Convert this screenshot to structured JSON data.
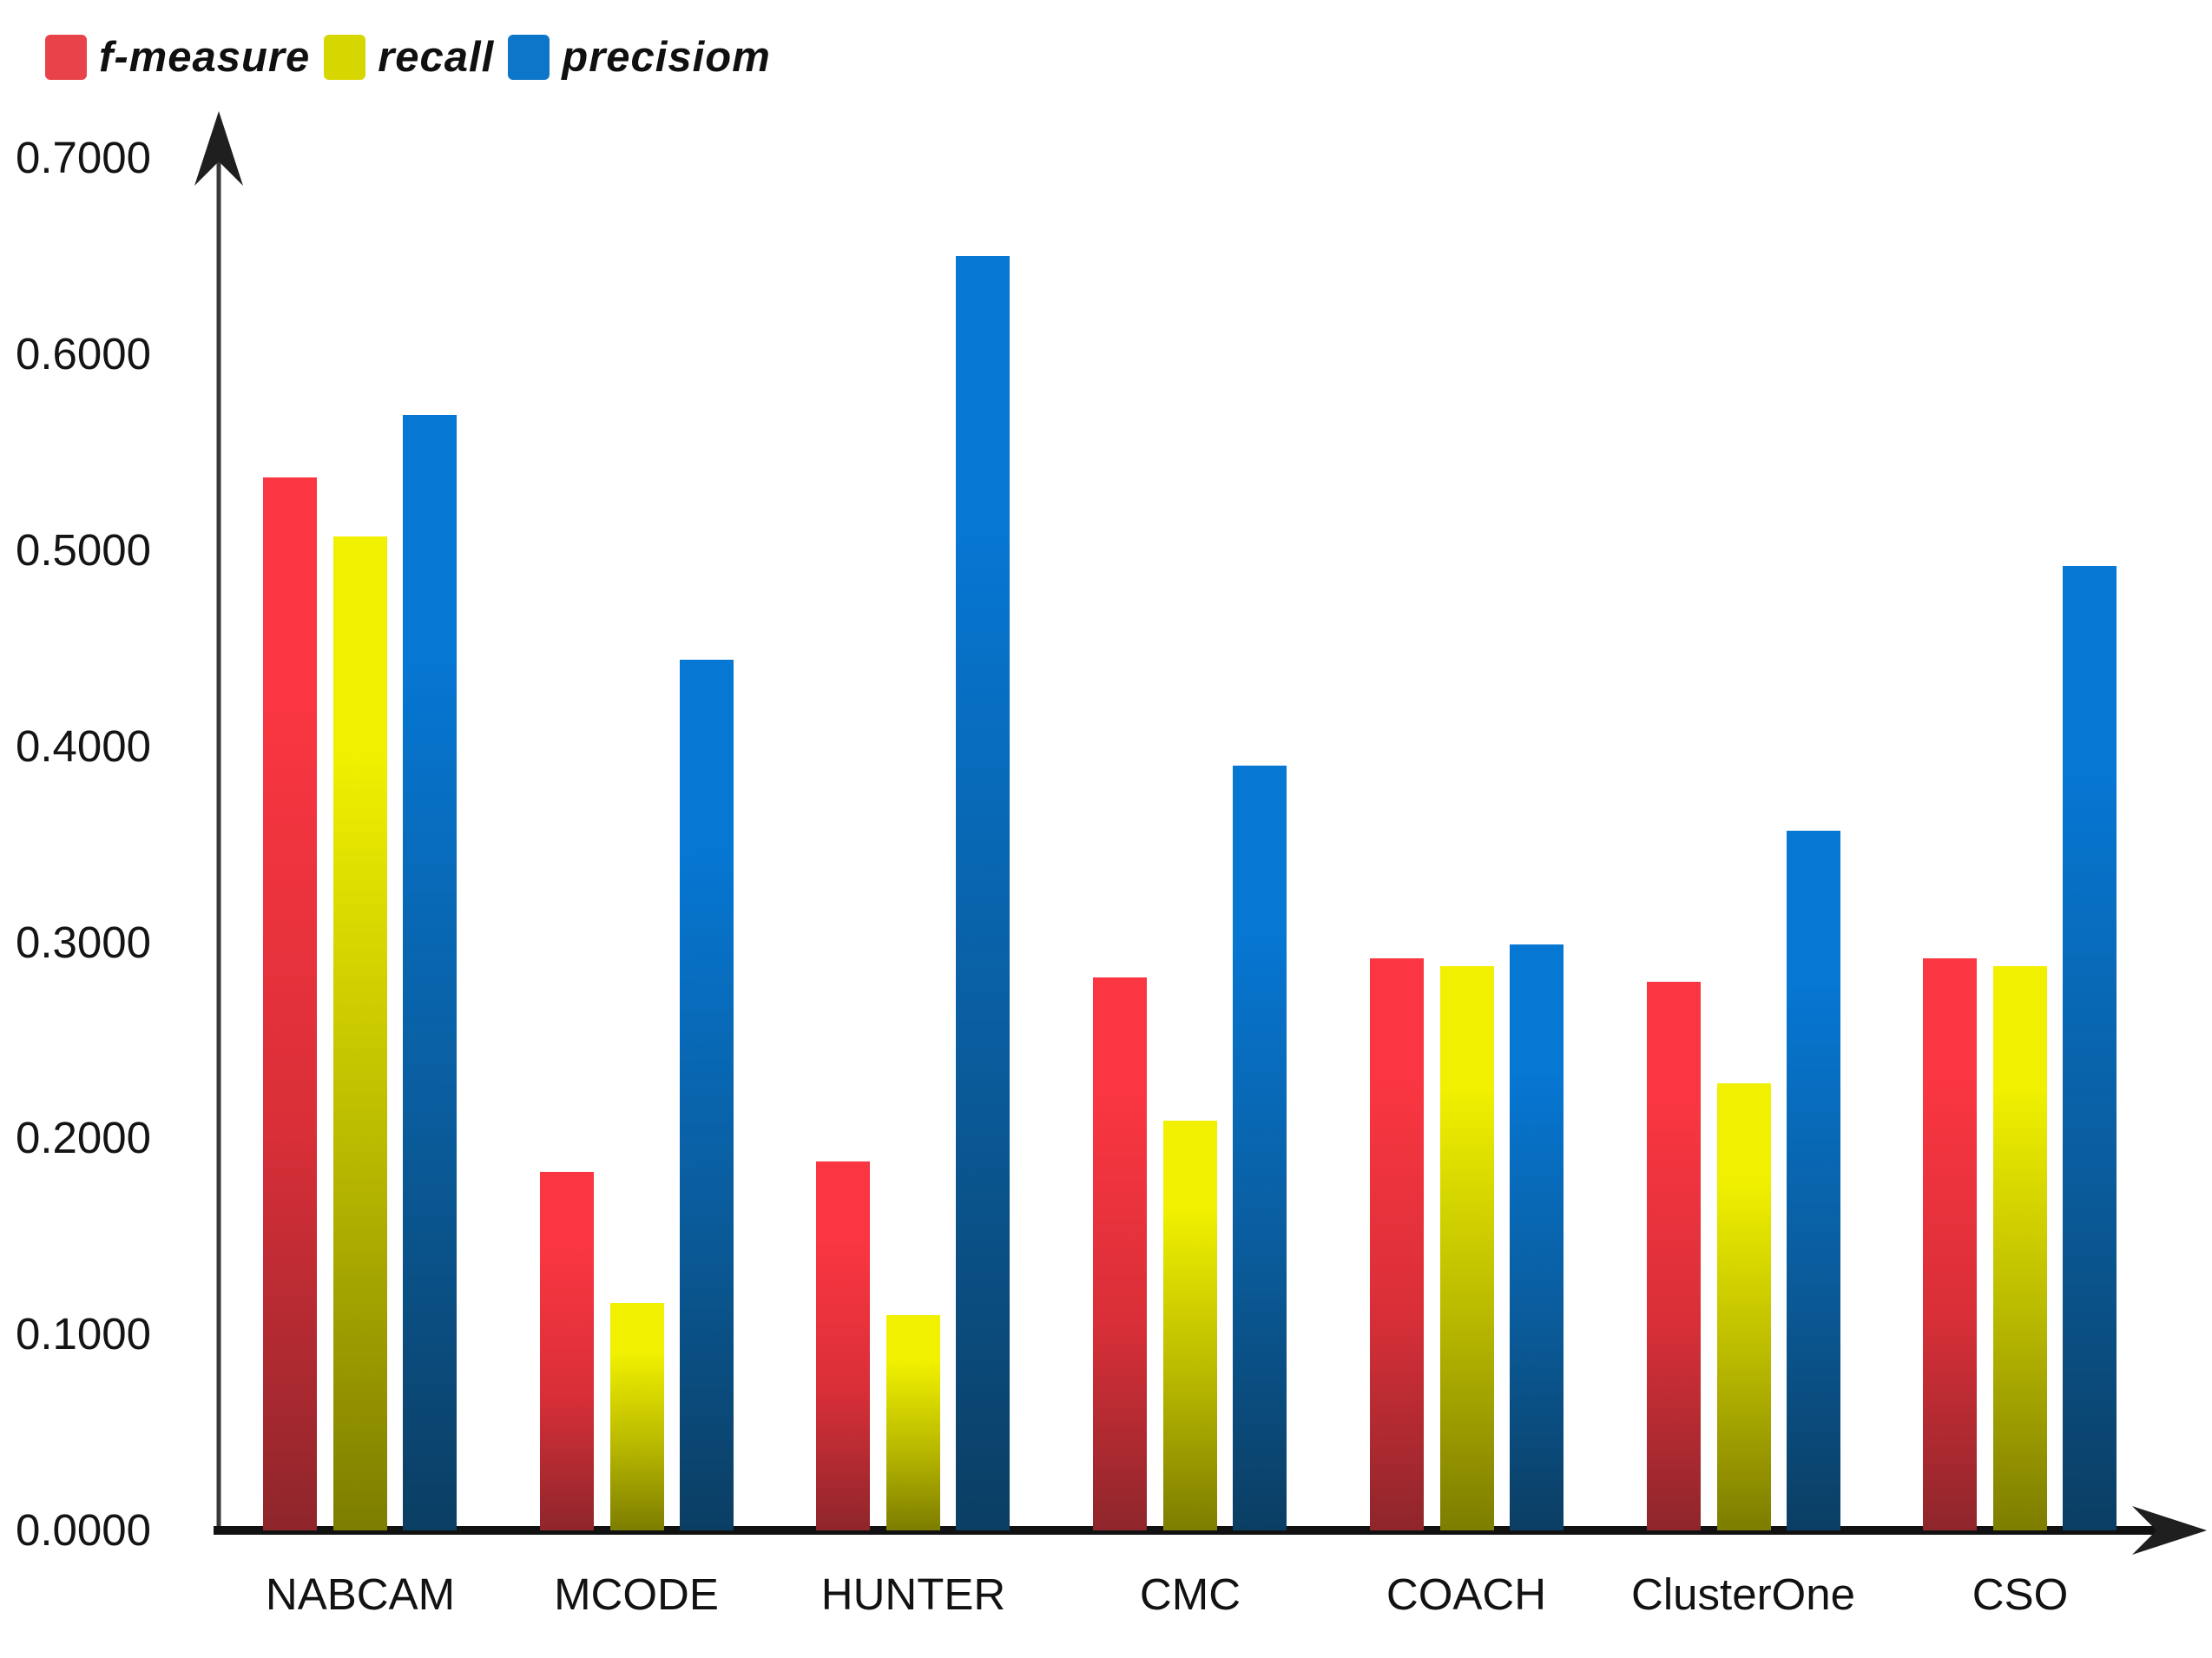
{
  "legend": {
    "items": [
      {
        "label": "f-measure",
        "color": "#e8424b"
      },
      {
        "label": "recall",
        "color": "#d6d600"
      },
      {
        "label": "precisiom",
        "color": "#0e76c8"
      }
    ]
  },
  "chart_data": {
    "type": "bar",
    "title": "",
    "xlabel": "",
    "ylabel": "",
    "ylim": [
      0.0,
      0.7
    ],
    "grid": false,
    "legend_position": "top-left",
    "categories": [
      "NABCAM",
      "MCODE",
      "HUNTER",
      "CMC",
      "COACH",
      "ClusterOne",
      "CSO"
    ],
    "yticks": [
      "0.0000",
      "0.1000",
      "0.2000",
      "0.3000",
      "0.4000",
      "0.5000",
      "0.6000",
      "0.7000"
    ],
    "series": [
      {
        "name": "f-measure",
        "values": [
          0.537,
          0.183,
          0.188,
          0.282,
          0.292,
          0.28,
          0.292
        ],
        "color_top": "#f93641",
        "color_mid": "#d92f38",
        "color_bottom": "#8e262b"
      },
      {
        "name": "recall",
        "values": [
          0.507,
          0.116,
          0.11,
          0.209,
          0.288,
          0.228,
          0.288
        ],
        "color_top": "#f0f000",
        "color_mid": "#b9b900",
        "color_bottom": "#7d7d00"
      },
      {
        "name": "precisiom",
        "values": [
          0.569,
          0.444,
          0.65,
          0.39,
          0.299,
          0.357,
          0.492
        ],
        "color_top": "#0677d3",
        "color_mid": "#0a5d9e",
        "color_bottom": "#0b3e63"
      }
    ]
  }
}
